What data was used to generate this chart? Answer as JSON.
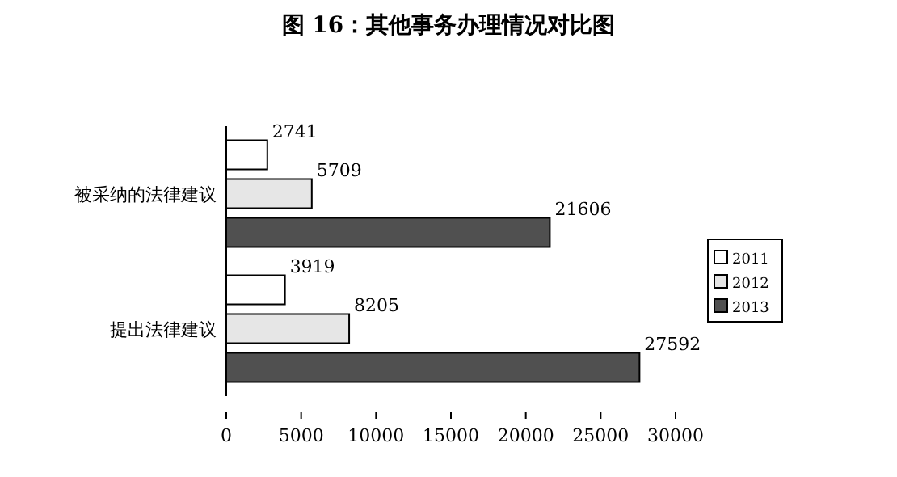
{
  "chart_data": {
    "type": "bar",
    "orientation": "horizontal",
    "title": "图 16：其他事务办理情况对比图",
    "categories": [
      "被采纳的法律建议",
      "提出法律建议"
    ],
    "series": [
      {
        "name": "2011",
        "color": "#ffffff",
        "values": [
          2741,
          3919
        ]
      },
      {
        "name": "2012",
        "color": "#e6e6e6",
        "values": [
          5709,
          8205
        ]
      },
      {
        "name": "2013",
        "color": "#505050",
        "values": [
          21606,
          27592
        ]
      }
    ],
    "xlim": [
      0,
      30000
    ],
    "xticks": [
      0,
      5000,
      10000,
      15000,
      20000,
      25000,
      30000
    ],
    "data_labels": true,
    "legend": "right",
    "grid": false
  }
}
